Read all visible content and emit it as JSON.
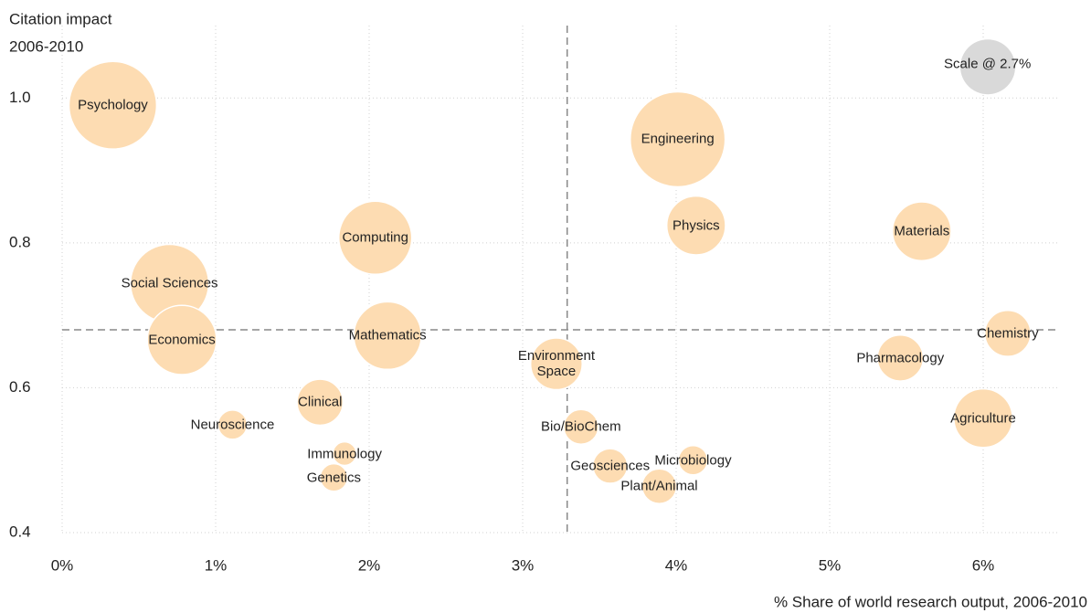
{
  "chart_data": {
    "type": "bubble",
    "y_title": [
      "Citation impact",
      "2006-2010"
    ],
    "x_title": "% Share of world research output, 2006-2010",
    "color": "#fddcb2",
    "xlim": [
      0,
      6.5
    ],
    "ylim": [
      0.4,
      1.1
    ],
    "xticks": [
      {
        "value": 0,
        "label": "0%"
      },
      {
        "value": 1,
        "label": "1%"
      },
      {
        "value": 2,
        "label": "2%"
      },
      {
        "value": 3,
        "label": "3%"
      },
      {
        "value": 4,
        "label": "4%"
      },
      {
        "value": 5,
        "label": "5%"
      },
      {
        "value": 6,
        "label": "6%"
      }
    ],
    "yticks": [
      0.4,
      0.6,
      0.8,
      {
        "value": 1,
        "label": "1.0"
      }
    ],
    "grid": true,
    "reference_lines": {
      "x": 3.29,
      "y": 0.68
    },
    "points": [
      {
        "label": "Psychology",
        "x": 0.33,
        "y": 0.99,
        "size": 6.9
      },
      {
        "label": "Engineering",
        "x": 4.01,
        "y": 0.943,
        "size": 8.1
      },
      {
        "label": "Computing",
        "x": 2.04,
        "y": 0.807,
        "size": 4.8
      },
      {
        "label": "Social Sciences",
        "x": 0.7,
        "y": 0.744,
        "size": 5.5
      },
      {
        "label": "Economics",
        "x": 0.78,
        "y": 0.666,
        "size": 4.3
      },
      {
        "label": "Mathematics",
        "x": 2.12,
        "y": 0.672,
        "size": 4.1
      },
      {
        "label": "Physics",
        "x": 4.13,
        "y": 0.824,
        "size": 3.1
      },
      {
        "label": "Materials",
        "x": 5.6,
        "y": 0.816,
        "size": 3.1
      },
      {
        "label": "Chemistry",
        "x": 6.16,
        "y": 0.675,
        "size": 1.9
      },
      {
        "label": "Pharmacology",
        "x": 5.46,
        "y": 0.641,
        "size": 1.9
      },
      {
        "label": "Agriculture",
        "x": 6.0,
        "y": 0.558,
        "size": 3.1
      },
      {
        "label": "Environment\nSpace",
        "x": 3.22,
        "y": 0.633,
        "size": 2.4
      },
      {
        "label": "Clinical",
        "x": 1.68,
        "y": 0.58,
        "size": 1.9
      },
      {
        "label": "Neuroscience",
        "x": 1.11,
        "y": 0.549,
        "size": 0.77
      },
      {
        "label": "Immunology",
        "x": 1.84,
        "y": 0.509,
        "size": 0.5
      },
      {
        "label": "Genetics",
        "x": 1.77,
        "y": 0.476,
        "size": 0.68
      },
      {
        "label": "Bio/BioChem",
        "x": 3.38,
        "y": 0.546,
        "size": 1.08
      },
      {
        "label": "Geosciences",
        "x": 3.57,
        "y": 0.492,
        "size": 1.08
      },
      {
        "label": "Microbiology",
        "x": 4.11,
        "y": 0.5,
        "size": 0.77
      },
      {
        "label": "Plant/Animal",
        "x": 3.89,
        "y": 0.464,
        "size": 1.08
      }
    ],
    "scale": {
      "label": "Scale @ 2.7%",
      "x": 6.03,
      "y": 1.043,
      "size": 2.7,
      "color": "#d9d9d9"
    }
  }
}
